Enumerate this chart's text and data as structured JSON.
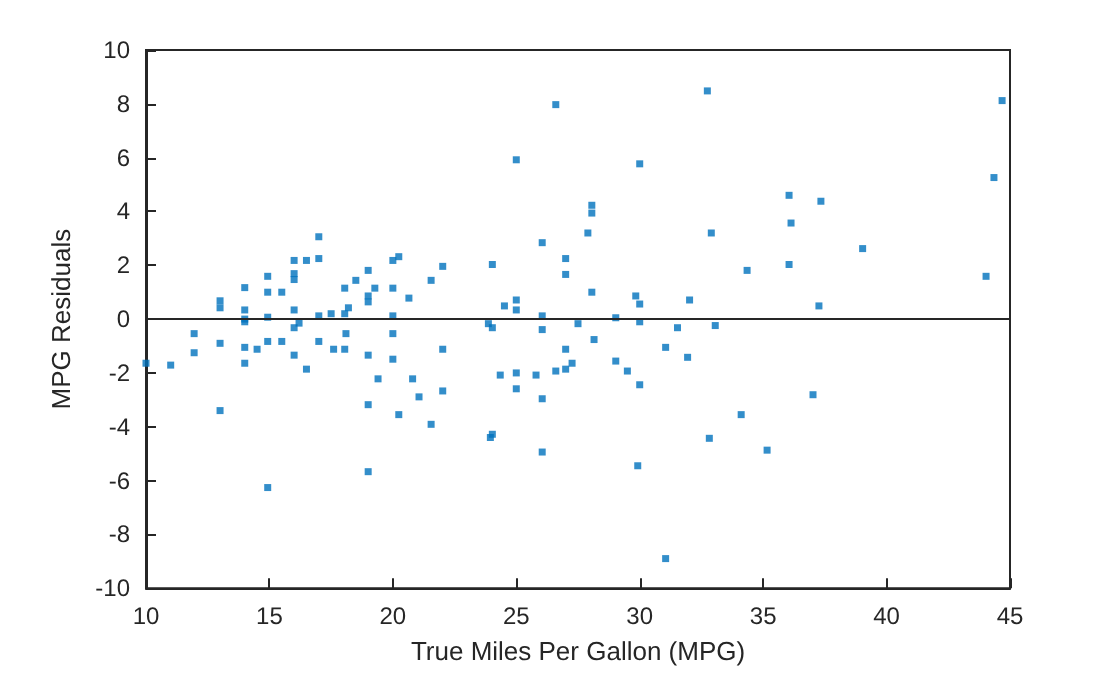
{
  "chart_data": {
    "type": "scatter",
    "xlabel": "True Miles Per Gallon (MPG)",
    "ylabel": "MPG Residuals",
    "x": [
      10,
      11,
      11.95,
      11.95,
      13,
      13,
      13,
      13,
      14,
      14,
      14,
      14,
      14,
      14,
      14.5,
      14.93,
      14.93,
      14.93,
      14.93,
      14.93,
      15.5,
      15.5,
      16,
      16,
      16,
      16,
      16,
      16,
      16.2,
      16.5,
      16.5,
      17,
      17,
      17,
      17,
      17.5,
      17.6,
      18.05,
      18.2,
      18.05,
      18.1,
      18.05,
      18.5,
      19,
      19,
      19,
      19,
      19,
      19,
      19.27,
      19.4,
      20,
      20,
      20,
      20,
      20,
      20.24,
      20.24,
      20.65,
      20.8,
      21.06,
      21.55,
      21.55,
      22.02,
      22.02,
      22.02,
      23.87,
      24.03,
      24.03,
      23.95,
      24.03,
      24.35,
      24.52,
      25,
      25,
      25,
      25,
      25,
      25.8,
      26.05,
      26.05,
      26.05,
      26.05,
      26.05,
      26.6,
      26.6,
      27,
      27,
      27,
      27,
      27.26,
      27.5,
      27.9,
      28.06,
      28.06,
      28.06,
      28.15,
      29.03,
      29.03,
      29.5,
      29.84,
      30,
      30,
      30,
      30,
      29.92,
      31.05,
      31.05,
      31.53,
      31.94,
      32.02,
      32.74,
      32.9,
      32.82,
      33.06,
      34.35,
      34.11,
      35.16,
      36.05,
      36.13,
      36.05,
      37.02,
      37.26,
      37.34,
      39.03,
      44.03,
      44.35,
      44.68
    ],
    "series": [
      {
        "color": "#0072bd",
        "values": [
          -1.64,
          -1.71,
          -0.54,
          -1.25,
          0.68,
          0.42,
          -0.9,
          -3.4,
          1.17,
          0.34,
          0,
          -0.1,
          -1.05,
          -1.64,
          -1.12,
          1.59,
          1,
          0.07,
          -0.83,
          -6.26,
          1,
          -0.83,
          2.18,
          1.69,
          1.47,
          0.34,
          -0.32,
          -1.34,
          -0.15,
          2.18,
          -1.86,
          3.06,
          2.25,
          0.12,
          -0.83,
          0.2,
          -1.12,
          1.15,
          0.42,
          0.2,
          -0.54,
          -1.12,
          1.44,
          1.81,
          0.86,
          0.64,
          -1.34,
          -3.18,
          -5.67,
          1.15,
          -2.22,
          2.18,
          1.15,
          0.12,
          -0.54,
          -1.49,
          2.32,
          -3.55,
          0.78,
          -2.22,
          -2.89,
          1.44,
          -3.91,
          1.96,
          -1.12,
          -2.67,
          -0.17,
          2.03,
          -0.32,
          -4.4,
          -4.28,
          -2.08,
          0.49,
          5.92,
          0.71,
          0.34,
          -2,
          -2.59,
          -2.08,
          2.84,
          0.12,
          -0.39,
          -2.96,
          -4.94,
          7.97,
          -1.93,
          2.25,
          1.66,
          -1.12,
          -1.86,
          -1.64,
          -0.17,
          3.2,
          4.23,
          3.94,
          1,
          -0.76,
          0.05,
          -1.56,
          -1.93,
          0.86,
          5.77,
          0.56,
          -0.1,
          -2.44,
          -5.45,
          -1.05,
          -8.9,
          -0.32,
          -1.42,
          0.71,
          8.48,
          3.2,
          -4.43,
          -0.24,
          1.81,
          -3.55,
          -4.87,
          4.6,
          3.57,
          2.03,
          -2.81,
          0.49,
          4.38,
          2.62,
          1.59,
          5.26,
          8.12
        ]
      }
    ],
    "xlim": [
      10,
      45
    ],
    "xticks": [
      10,
      15,
      20,
      25,
      30,
      35,
      40,
      45
    ],
    "ylim": [
      -10,
      10
    ],
    "yticks": [
      -10,
      -8,
      -6,
      -4,
      -2,
      0,
      2,
      4,
      6,
      8,
      10
    ],
    "ref_lines": [
      {
        "axis": "y",
        "value": 0,
        "color": "#262626"
      }
    ],
    "marker": "square"
  }
}
